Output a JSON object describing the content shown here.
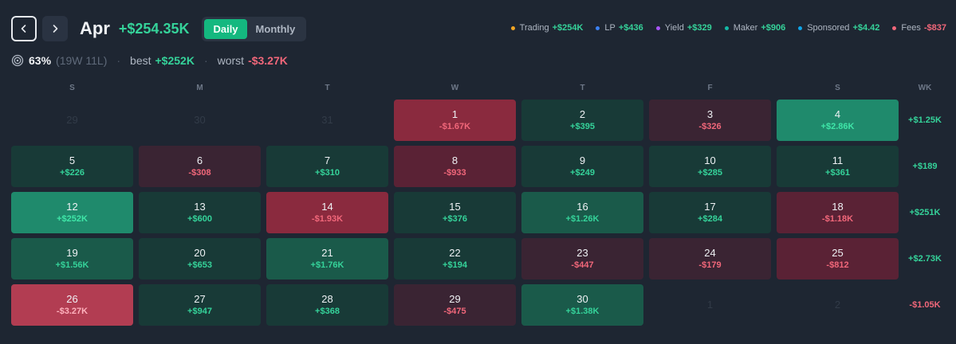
{
  "header": {
    "month": "Apr",
    "total": "+$254.35K",
    "toggle": {
      "daily": "Daily",
      "monthly": "Monthly",
      "active": "daily"
    }
  },
  "legend": [
    {
      "label": "Trading",
      "value": "+$254K",
      "color": "#f2a623",
      "valueColor": "#35d39a"
    },
    {
      "label": "LP",
      "value": "+$436",
      "color": "#3b82f6",
      "valueColor": "#35d39a"
    },
    {
      "label": "Yield",
      "value": "+$329",
      "color": "#a855f7",
      "valueColor": "#35d39a"
    },
    {
      "label": "Maker",
      "value": "+$906",
      "color": "#14b8a6",
      "valueColor": "#35d39a"
    },
    {
      "label": "Sponsored",
      "value": "+$4.42",
      "color": "#0ea5e9",
      "valueColor": "#35d39a"
    },
    {
      "label": "Fees",
      "value": "-$837",
      "color": "#f1677a",
      "valueColor": "#f1677a"
    }
  ],
  "stats": {
    "winrate": "63%",
    "record": "(19W 11L)",
    "best_label": "best",
    "best": "+$252K",
    "worst_label": "worst",
    "worst": "-$3.27K"
  },
  "weekdays": [
    "S",
    "M",
    "T",
    "W",
    "T",
    "F",
    "S",
    "WK"
  ],
  "weeks": [
    {
      "days": [
        {
          "day": "29",
          "value": "",
          "tone": "out"
        },
        {
          "day": "30",
          "value": "",
          "tone": "out"
        },
        {
          "day": "31",
          "value": "",
          "tone": "out"
        },
        {
          "day": "1",
          "value": "-$1.67K",
          "tone": "neg3"
        },
        {
          "day": "2",
          "value": "+$395",
          "tone": "pos1"
        },
        {
          "day": "3",
          "value": "-$326",
          "tone": "neg1"
        },
        {
          "day": "4",
          "value": "+$2.86K",
          "tone": "pos3"
        }
      ],
      "total": "+$1.25K",
      "sign": "p"
    },
    {
      "days": [
        {
          "day": "5",
          "value": "+$226",
          "tone": "pos1"
        },
        {
          "day": "6",
          "value": "-$308",
          "tone": "neg1"
        },
        {
          "day": "7",
          "value": "+$310",
          "tone": "pos1"
        },
        {
          "day": "8",
          "value": "-$933",
          "tone": "neg2"
        },
        {
          "day": "9",
          "value": "+$249",
          "tone": "pos1"
        },
        {
          "day": "10",
          "value": "+$285",
          "tone": "pos1"
        },
        {
          "day": "11",
          "value": "+$361",
          "tone": "pos1"
        }
      ],
      "total": "+$189",
      "sign": "p"
    },
    {
      "days": [
        {
          "day": "12",
          "value": "+$252K",
          "tone": "pos3"
        },
        {
          "day": "13",
          "value": "+$600",
          "tone": "pos1"
        },
        {
          "day": "14",
          "value": "-$1.93K",
          "tone": "neg3"
        },
        {
          "day": "15",
          "value": "+$376",
          "tone": "pos1"
        },
        {
          "day": "16",
          "value": "+$1.26K",
          "tone": "pos2"
        },
        {
          "day": "17",
          "value": "+$284",
          "tone": "pos1"
        },
        {
          "day": "18",
          "value": "-$1.18K",
          "tone": "neg2"
        }
      ],
      "total": "+$251K",
      "sign": "p"
    },
    {
      "days": [
        {
          "day": "19",
          "value": "+$1.56K",
          "tone": "pos2"
        },
        {
          "day": "20",
          "value": "+$653",
          "tone": "pos1"
        },
        {
          "day": "21",
          "value": "+$1.76K",
          "tone": "pos2"
        },
        {
          "day": "22",
          "value": "+$194",
          "tone": "pos1"
        },
        {
          "day": "23",
          "value": "-$447",
          "tone": "neg1"
        },
        {
          "day": "24",
          "value": "-$179",
          "tone": "neg1"
        },
        {
          "day": "25",
          "value": "-$812",
          "tone": "neg2"
        }
      ],
      "total": "+$2.73K",
      "sign": "p"
    },
    {
      "days": [
        {
          "day": "26",
          "value": "-$3.27K",
          "tone": "neg4"
        },
        {
          "day": "27",
          "value": "+$947",
          "tone": "pos1"
        },
        {
          "day": "28",
          "value": "+$368",
          "tone": "pos1"
        },
        {
          "day": "29",
          "value": "-$475",
          "tone": "neg1"
        },
        {
          "day": "30",
          "value": "+$1.38K",
          "tone": "pos2"
        },
        {
          "day": "1",
          "value": "",
          "tone": "out"
        },
        {
          "day": "2",
          "value": "",
          "tone": "out"
        }
      ],
      "total": "-$1.05K",
      "sign": "n"
    }
  ]
}
